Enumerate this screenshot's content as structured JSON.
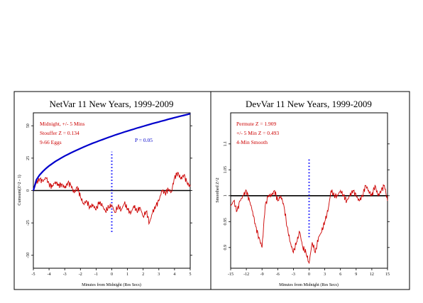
{
  "chart_data": [
    {
      "type": "line",
      "title": "NetVar 11 New Years, 1999-2009",
      "xlabel": "Minutes from Midnight (Res Secs)",
      "ylabel": "Cumsum(Z^2 - 1)",
      "xlim": [
        -5,
        5
      ],
      "ylim": [
        -60,
        60
      ],
      "xticks": [
        "-5",
        "-4",
        "-3",
        "-2",
        "-1",
        "0",
        "1",
        "2",
        "3",
        "4",
        "5"
      ],
      "yticks": [
        "50",
        "25",
        "0",
        "-25",
        "-50"
      ],
      "ytick_values": [
        50,
        25,
        0,
        -25,
        -50
      ],
      "annotations": [
        "Midnight, +/- 5 Mins",
        "Stouffer Z = 0.134",
        "9-66 Eggs",
        "P = 0.05"
      ],
      "midnight_marker": {
        "x": 0,
        "y_range": [
          -32,
          30
        ],
        "color": "#0000ff"
      },
      "series": [
        {
          "color": "#cc0000",
          "x": [
            -5,
            -4.8,
            -4.6,
            -4.4,
            -4.2,
            -4,
            -3.8,
            -3.6,
            -3.4,
            -3.2,
            -3,
            -2.8,
            -2.6,
            -2.4,
            -2.2,
            -2,
            -1.8,
            -1.6,
            -1.4,
            -1.2,
            -1,
            -0.8,
            -0.6,
            -0.4,
            -0.2,
            0,
            0.2,
            0.4,
            0.6,
            0.8,
            1,
            1.2,
            1.4,
            1.6,
            1.8,
            2,
            2.2,
            2.4,
            2.6,
            2.8,
            3,
            3.2,
            3.4,
            3.6,
            3.8,
            4,
            4.2,
            4.4,
            4.6,
            4.8,
            5
          ],
          "values": [
            0,
            6,
            9,
            7,
            10,
            5,
            3,
            7,
            4,
            5,
            2,
            6,
            4,
            -2,
            3,
            -5,
            -10,
            -8,
            -13,
            -11,
            -15,
            -9,
            -12,
            -16,
            -13,
            -11,
            -17,
            -12,
            -15,
            -10,
            -14,
            -18,
            -12,
            -16,
            -13,
            -20,
            -16,
            -25,
            -17,
            -12,
            -8,
            0,
            -2,
            1,
            -1,
            10,
            14,
            9,
            12,
            6,
            3
          ]
        },
        {
          "color": "#0000cc",
          "x": [
            -5,
            -4.8,
            -4.6,
            -4.4,
            -4.2,
            -4,
            -3.8,
            -3.6,
            -3.4,
            -3.2,
            -3,
            -2.8,
            -2.6,
            -2.4,
            -2.2,
            -2,
            -1.8,
            -1.6,
            -1.4,
            -1.2,
            -1,
            -0.8,
            -0.6,
            -0.4,
            -0.2,
            0,
            0.2,
            0.4,
            0.6,
            0.8,
            1,
            1.2,
            1.4,
            1.6,
            1.8,
            2,
            2.2,
            2.4,
            2.6,
            2.8,
            3,
            3.2,
            3.4,
            3.6,
            3.8,
            4,
            4.2,
            4.4,
            4.6,
            4.8,
            5
          ],
          "values": [
            0,
            8.4,
            12,
            14.7,
            17,
            19,
            20.7,
            22.4,
            23.9,
            25.3,
            26.7,
            27.9,
            29.1,
            30.3,
            31.4,
            32.5,
            33.6,
            34.6,
            35.6,
            36.6,
            37.5,
            38.4,
            39.3,
            40.2,
            41.1,
            41.9,
            42.8,
            43.6,
            44.4,
            45.2,
            45.9,
            46.7,
            47.4,
            48.2,
            48.9,
            49.6,
            50.3,
            51,
            51.7,
            52.4,
            53,
            53.7,
            54.3,
            55,
            55.6,
            56.3,
            56.9,
            57.5,
            58.1,
            58.7,
            59.3
          ]
        }
      ]
    },
    {
      "type": "line",
      "title": "DevVar 11 New Years, 1999-2009",
      "xlabel": "Minutes from Midnight (Res Secs)",
      "ylabel": "Smoothed Z^2",
      "xlim": [
        -15,
        15
      ],
      "ylim": [
        0.86,
        1.16
      ],
      "xticks": [
        "-15",
        "-12",
        "-9",
        "-6",
        "-3",
        "0",
        "3",
        "6",
        "9",
        "12",
        "15"
      ],
      "yticks": [
        "1.1",
        "1.05",
        "1",
        "0.95",
        "0.9"
      ],
      "ytick_values": [
        1.1,
        1.05,
        1.0,
        0.95,
        0.9
      ],
      "annotations": [
        "Permute Z = 1.909",
        "+/- 5 Min Z = 0.493",
        "4-Min Smooth"
      ],
      "midnight_marker": {
        "x": 0,
        "y_range": [
          0.92,
          1.07
        ],
        "color": "#0000ff"
      },
      "series": [
        {
          "color": "#cc0000",
          "x": [
            -15,
            -14.4,
            -13.8,
            -13.2,
            -12.6,
            -12,
            -11.4,
            -10.8,
            -10.2,
            -9.6,
            -9,
            -8.4,
            -7.8,
            -7.2,
            -6.6,
            -6,
            -5.4,
            -4.8,
            -4.2,
            -3.6,
            -3,
            -2.4,
            -1.8,
            -1.2,
            -0.6,
            0,
            0.6,
            1.2,
            1.8,
            2.4,
            3,
            3.6,
            4.2,
            4.8,
            5.4,
            6,
            6.6,
            7.2,
            7.8,
            8.4,
            9,
            9.6,
            10.2,
            10.8,
            11.4,
            12,
            12.6,
            13.2,
            13.8,
            14.4,
            15
          ],
          "values": [
            0.98,
            0.99,
            0.97,
            0.99,
            1.0,
            1.01,
            0.99,
            0.97,
            0.94,
            0.92,
            0.9,
            0.98,
            1.0,
            1.0,
            1.01,
            0.99,
            1.0,
            0.98,
            0.94,
            0.91,
            0.89,
            0.91,
            0.93,
            0.9,
            0.89,
            0.87,
            0.91,
            0.89,
            0.92,
            0.93,
            0.95,
            0.97,
            1.01,
            1.0,
            1.0,
            1.01,
            1.0,
            0.99,
            1.0,
            1.01,
            1.0,
            0.99,
            1.0,
            1.02,
            1.01,
            1.0,
            1.02,
            1.0,
            1.01,
            1.02,
            0.99
          ]
        }
      ]
    }
  ]
}
